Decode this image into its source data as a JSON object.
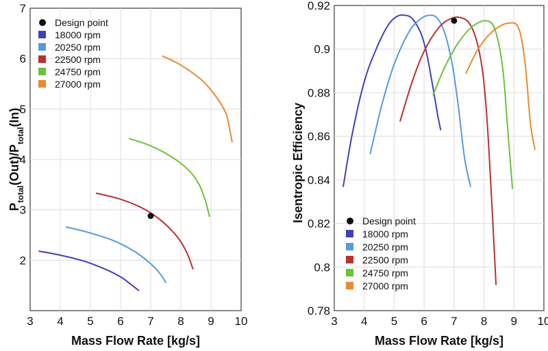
{
  "chart_data": [
    {
      "type": "line",
      "title": "",
      "xlabel": "Mass Flow Rate [kg/s]",
      "ylabel_parts": {
        "p1": "P",
        "s1": "total",
        "m1": "(Out)/P",
        "s2": "total",
        "m2": "(In)"
      },
      "xlim": [
        3,
        10
      ],
      "ylim": [
        1,
        7
      ],
      "xticks": [
        3,
        4,
        5,
        6,
        7,
        8,
        9,
        10
      ],
      "yticks": [
        2,
        3,
        4,
        5,
        6,
        7
      ],
      "grid": true,
      "legend_position": "top-left",
      "legend_marker_label": "Design point",
      "design_point": {
        "x": 7.0,
        "y": 2.88,
        "color": "#111111"
      },
      "series": [
        {
          "name": "18000 rpm",
          "color": "#4040b8",
          "x": [
            3.3,
            4.0,
            4.8,
            5.5,
            6.0,
            6.3,
            6.6
          ],
          "y": [
            2.18,
            2.1,
            1.98,
            1.82,
            1.67,
            1.54,
            1.4
          ]
        },
        {
          "name": "20250 rpm",
          "color": "#5599e0",
          "x": [
            4.2,
            5.0,
            5.8,
            6.5,
            7.0,
            7.3,
            7.5
          ],
          "y": [
            2.66,
            2.54,
            2.38,
            2.16,
            1.93,
            1.74,
            1.56
          ]
        },
        {
          "name": "22500 rpm",
          "color": "#b83030",
          "x": [
            5.2,
            6.0,
            6.8,
            7.4,
            7.9,
            8.2,
            8.4
          ],
          "y": [
            3.33,
            3.21,
            3.01,
            2.76,
            2.45,
            2.15,
            1.83
          ]
        },
        {
          "name": "24750 rpm",
          "color": "#6cc23a",
          "x": [
            6.3,
            7.0,
            7.8,
            8.3,
            8.6,
            8.8,
            8.95
          ],
          "y": [
            4.41,
            4.27,
            4.01,
            3.76,
            3.51,
            3.21,
            2.87
          ]
        },
        {
          "name": "27000 rpm",
          "color": "#e88a30",
          "x": [
            7.4,
            8.0,
            8.7,
            9.2,
            9.5,
            9.6,
            9.7
          ],
          "y": [
            6.05,
            5.87,
            5.57,
            5.22,
            4.91,
            4.66,
            4.35
          ]
        }
      ]
    },
    {
      "type": "line",
      "title": "",
      "xlabel": "Mass Flow Rate [kg/s]",
      "ylabel": "Isentropic Efficiency",
      "xlim": [
        3,
        10
      ],
      "ylim": [
        0.78,
        0.92
      ],
      "xticks": [
        3,
        4,
        5,
        6,
        7,
        8,
        9,
        10
      ],
      "yticks": [
        0.78,
        0.8,
        0.82,
        0.84,
        0.86,
        0.88,
        0.9,
        0.92
      ],
      "grid": true,
      "legend_position": "bottom-left",
      "legend_marker_label": "Design point",
      "design_point": {
        "x": 7.0,
        "y": 0.913,
        "color": "#111111"
      },
      "series": [
        {
          "name": "18000 rpm",
          "color": "#4040b8",
          "x": [
            3.3,
            3.6,
            4.0,
            4.4,
            4.8,
            5.1,
            5.35,
            5.6,
            5.9,
            6.1,
            6.3,
            6.45,
            6.55
          ],
          "y": [
            0.837,
            0.861,
            0.885,
            0.9,
            0.911,
            0.915,
            0.9155,
            0.914,
            0.907,
            0.897,
            0.882,
            0.87,
            0.863
          ]
        },
        {
          "name": "20250 rpm",
          "color": "#5599e0",
          "x": [
            4.2,
            4.6,
            5.0,
            5.5,
            5.9,
            6.2,
            6.45,
            6.7,
            6.95,
            7.15,
            7.35,
            7.55
          ],
          "y": [
            0.852,
            0.875,
            0.893,
            0.908,
            0.914,
            0.9155,
            0.914,
            0.907,
            0.892,
            0.873,
            0.85,
            0.837
          ]
        },
        {
          "name": "22500 rpm",
          "color": "#b83030",
          "x": [
            5.2,
            5.6,
            6.0,
            6.5,
            6.9,
            7.2,
            7.5,
            7.75,
            7.95,
            8.1,
            8.25,
            8.4
          ],
          "y": [
            0.867,
            0.885,
            0.899,
            0.91,
            0.914,
            0.9145,
            0.912,
            0.904,
            0.89,
            0.868,
            0.832,
            0.792
          ]
        },
        {
          "name": "24750 rpm",
          "color": "#6cc23a",
          "x": [
            6.3,
            6.7,
            7.1,
            7.5,
            7.8,
            8.05,
            8.3,
            8.5,
            8.65,
            8.8,
            8.95
          ],
          "y": [
            0.879,
            0.892,
            0.902,
            0.909,
            0.912,
            0.913,
            0.911,
            0.902,
            0.888,
            0.862,
            0.836
          ]
        },
        {
          "name": "27000 rpm",
          "color": "#e88a30",
          "x": [
            7.4,
            7.8,
            8.2,
            8.6,
            8.9,
            9.1,
            9.25,
            9.4,
            9.55,
            9.7
          ],
          "y": [
            0.889,
            0.9,
            0.907,
            0.911,
            0.912,
            0.911,
            0.905,
            0.89,
            0.866,
            0.854
          ]
        }
      ]
    }
  ]
}
